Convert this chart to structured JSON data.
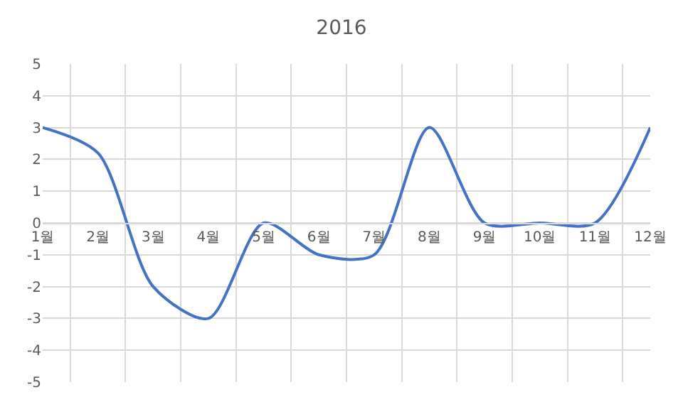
{
  "chart_data": {
    "type": "line",
    "title": "2016",
    "categories": [
      "1월",
      "2월",
      "3월",
      "4월",
      "5월",
      "6월",
      "7월",
      "8월",
      "9월",
      "10월",
      "11월",
      "12월"
    ],
    "series": [
      {
        "color": "#4472c4",
        "values": [
          3,
          2.2,
          -2,
          -3,
          0,
          -1,
          -1,
          3,
          0,
          0,
          0,
          3
        ]
      }
    ],
    "ylim": [
      -5,
      5
    ],
    "yticks": [
      -5,
      -4,
      -3,
      -2,
      -1,
      0,
      1,
      2,
      3,
      4,
      5
    ],
    "grid": true,
    "marker": "none",
    "line_style": "solid"
  }
}
